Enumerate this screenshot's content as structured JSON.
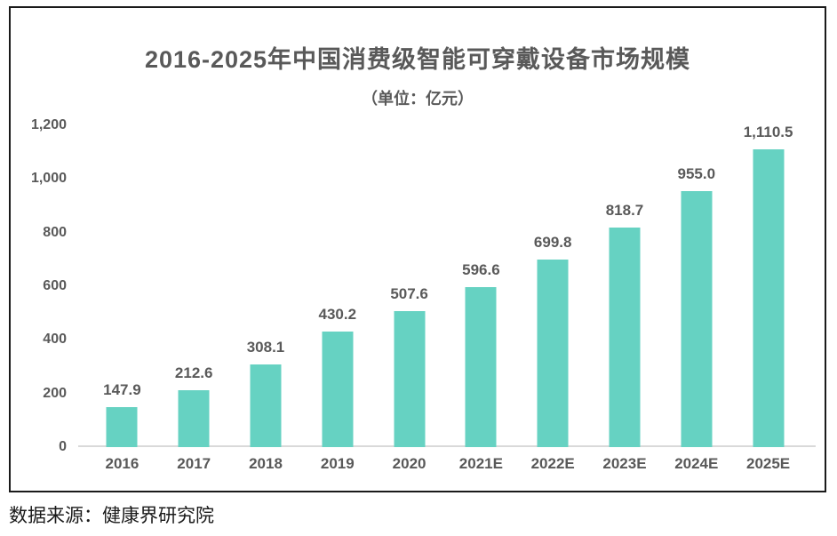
{
  "page": {
    "source_note": "数据来源：健康界研究院"
  },
  "chart_data": {
    "type": "bar",
    "title": "2016-2025年中国消费级智能可穿戴设备市场规模",
    "subtitle": "（单位：亿元）",
    "categories": [
      "2016",
      "2017",
      "2018",
      "2019",
      "2020",
      "2021E",
      "2022E",
      "2023E",
      "2024E",
      "2025E"
    ],
    "values": [
      147.9,
      212.6,
      308.1,
      430.2,
      507.6,
      596.6,
      699.8,
      818.7,
      955.0,
      1110.5
    ],
    "value_labels": [
      "147.9",
      "212.6",
      "308.1",
      "430.2",
      "507.6",
      "596.6",
      "699.8",
      "818.7",
      "955.0",
      "1,110.5"
    ],
    "xlabel": "",
    "ylabel": "",
    "ylim": [
      0,
      1200
    ],
    "y_ticks": [
      0,
      200,
      400,
      600,
      800,
      1000,
      1200
    ],
    "y_tick_labels": [
      "0",
      "200",
      "400",
      "600",
      "800",
      "1,000",
      "1,200"
    ],
    "grid": false,
    "legend": "none",
    "colors": {
      "bar": "#66D2C2",
      "text": "#595959",
      "axis_line": "#d9d9d9",
      "frame_border": "#1a1a1a",
      "background": "#ffffff"
    }
  }
}
